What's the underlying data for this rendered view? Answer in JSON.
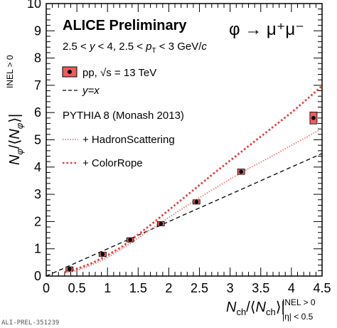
{
  "chart_data": {
    "type": "scatter",
    "title": "ALICE Preliminary",
    "process": "φ → μ⁺μ⁻",
    "kinematics": "2.5 < y < 4, 2.5 < p_T < 3 GeV/c",
    "xlabel": "N_ch/⟨N_ch⟩|_{|η|<0.5}^{INEL>0}",
    "ylabel": "N_φ/⟨N_φ⟩|^{INEL>0}",
    "xlim": [
      0,
      4.5
    ],
    "ylim": [
      0,
      10
    ],
    "x_ticks": [
      "0",
      "0.5",
      "1",
      "1.5",
      "2",
      "2.5",
      "3",
      "3.5",
      "4",
      "4.5"
    ],
    "y_ticks": [
      "0",
      "1",
      "2",
      "3",
      "4",
      "5",
      "6",
      "7",
      "8",
      "9",
      "10"
    ],
    "grid": false,
    "legend_position": "top-left",
    "watermark": "ALI-PREL-351239",
    "series": [
      {
        "name": "pp, √s = 13 TeV",
        "kind": "points",
        "color": "#f05a5a",
        "x": [
          0.38,
          0.92,
          1.37,
          1.87,
          2.45,
          3.18,
          4.36
        ],
        "y": [
          0.26,
          0.8,
          1.33,
          1.92,
          2.72,
          3.83,
          5.8
        ],
        "yerr": [
          0.05,
          0.07,
          0.07,
          0.06,
          0.08,
          0.1,
          0.22
        ]
      },
      {
        "name": "y=x",
        "kind": "line",
        "style": "dashed",
        "color": "#000000",
        "x": [
          0,
          4.5
        ],
        "y": [
          0,
          4.5
        ]
      },
      {
        "name": "+ HadronScattering",
        "kind": "line",
        "style": "dotted-fine",
        "color": "#f08080",
        "label_group": "PYTHIA 8 (Monash 2013)",
        "x": [
          0.3,
          0.5,
          0.75,
          1.0,
          1.25,
          1.5,
          1.75,
          2.0,
          2.25,
          2.5,
          2.75,
          3.0,
          3.25,
          3.5,
          3.75,
          4.0,
          4.25,
          4.5
        ],
        "y": [
          0.1,
          0.2,
          0.42,
          0.68,
          1.02,
          1.4,
          1.78,
          2.15,
          2.52,
          2.88,
          3.22,
          3.56,
          3.88,
          4.18,
          4.48,
          4.8,
          5.1,
          5.42
        ]
      },
      {
        "name": "+ ColorRope",
        "kind": "line",
        "style": "dotted",
        "color": "#e83838",
        "x": [
          0.3,
          0.5,
          0.75,
          1.0,
          1.25,
          1.5,
          1.75,
          2.0,
          2.25,
          2.5,
          2.75,
          3.0,
          3.25,
          3.5,
          3.75,
          4.0,
          4.25,
          4.5
        ],
        "y": [
          0.14,
          0.26,
          0.48,
          0.76,
          1.1,
          1.52,
          1.96,
          2.42,
          2.88,
          3.34,
          3.8,
          4.24,
          4.68,
          5.12,
          5.56,
          6.0,
          6.48,
          6.98
        ]
      }
    ]
  },
  "legend": {
    "data_label": "pp, √s = 13 TeV",
    "line_label": "y=x",
    "model_title": "PYTHIA 8 (Monash 2013)",
    "hs_label": "+ HadronScattering",
    "cr_label": "+ ColorRope"
  },
  "annotations": {
    "title": "ALICE Preliminary",
    "process": "φ → μ⁺μ⁻",
    "kinematics": "2.5 < y < 4, 2.5 < p_T < 3 GeV/c"
  }
}
